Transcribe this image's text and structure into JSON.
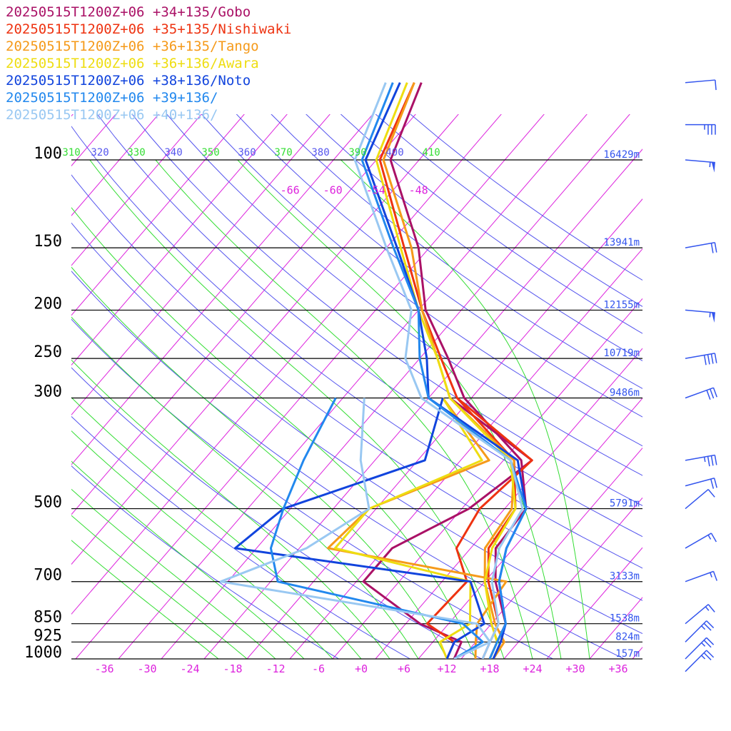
{
  "colors": {
    "isobar": "#000000",
    "isotherm": "#dd22dd",
    "dry_adiabat": "#5555ee",
    "moist_adiabat": "#33dd33",
    "height_label": "#3355ee",
    "pressure_label": "#000000",
    "barb": "#3355ee"
  },
  "chart_data": {
    "type": "line",
    "chart_kind": "Skew-T log-P sounding",
    "pressure_levels": [
      100,
      150,
      200,
      250,
      300,
      500,
      700,
      850,
      925,
      1000
    ],
    "pressure_labels": [
      "100",
      "150",
      "200",
      "250",
      "300",
      "500",
      "700",
      "850",
      "925",
      "1000"
    ],
    "height_labels": [
      {
        "p": 100,
        "text": "16429m"
      },
      {
        "p": 150,
        "text": "13941m"
      },
      {
        "p": 200,
        "text": "12155m"
      },
      {
        "p": 250,
        "text": "10719m"
      },
      {
        "p": 300,
        "text": "9486m"
      },
      {
        "p": 500,
        "text": "5791m"
      },
      {
        "p": 700,
        "text": "3133m"
      },
      {
        "p": 850,
        "text": "1538m"
      },
      {
        "p": 925,
        "text": "824m"
      },
      {
        "p": 1000,
        "text": "157m"
      }
    ],
    "temperature_ticks": [
      -36,
      -30,
      -24,
      -18,
      -12,
      -6,
      0,
      6,
      12,
      18,
      24,
      30,
      36
    ],
    "temperature_tick_labels": [
      "-36",
      "-30",
      "-24",
      "-18",
      "-12",
      "-6",
      "+0",
      "+6",
      "+12",
      "+18",
      "+24",
      "+30",
      "+36"
    ],
    "upper_isotherm_labels": [
      {
        "t": -66,
        "text": "-66"
      },
      {
        "t": -60,
        "text": "-60"
      },
      {
        "t": -54,
        "text": "-54"
      },
      {
        "t": -48,
        "text": "-48"
      }
    ],
    "theta_labels": [
      {
        "theta": 310,
        "text": "310",
        "kind": "moist"
      },
      {
        "theta": 320,
        "text": "320",
        "kind": "dry"
      },
      {
        "theta": 330,
        "text": "330",
        "kind": "moist"
      },
      {
        "theta": 340,
        "text": "340",
        "kind": "dry"
      },
      {
        "theta": 350,
        "text": "350",
        "kind": "moist"
      },
      {
        "theta": 360,
        "text": "360",
        "kind": "dry"
      },
      {
        "theta": 370,
        "text": "370",
        "kind": "moist"
      },
      {
        "theta": 380,
        "text": "380",
        "kind": "dry"
      },
      {
        "theta": 390,
        "text": "390",
        "kind": "moist"
      },
      {
        "theta": 400,
        "text": "400",
        "kind": "dry"
      },
      {
        "theta": 410,
        "text": "410",
        "kind": "moist"
      }
    ],
    "dry_adiabats_theta": [
      270,
      280,
      290,
      300,
      310,
      320,
      330,
      340,
      350,
      360,
      370,
      380,
      390,
      400,
      410,
      420,
      430,
      440
    ],
    "moist_adiabats_t": [
      -20,
      -16,
      -12,
      -8,
      -4,
      0,
      4,
      8,
      12,
      16,
      20,
      24,
      28,
      32
    ],
    "xlim": [
      -40,
      40
    ],
    "plim": [
      1000,
      100
    ],
    "series": [
      {
        "name": "20250515T1200Z+06 +34+135/Gobo",
        "color": "#aa1166",
        "temperature": [
          [
            1000,
            18
          ],
          [
            925,
            17
          ],
          [
            850,
            16
          ],
          [
            700,
            9.5
          ],
          [
            600,
            5.5
          ],
          [
            500,
            5
          ],
          [
            400,
            -1.5
          ],
          [
            300,
            -17
          ],
          [
            250,
            -24
          ],
          [
            200,
            -33
          ],
          [
            150,
            -41.5
          ],
          [
            100,
            -56
          ],
          [
            70,
            -61
          ]
        ],
        "dewpoint": [
          [
            1000,
            13
          ],
          [
            925,
            12
          ],
          [
            850,
            4
          ],
          [
            700,
            -9
          ],
          [
            600,
            -9
          ],
          [
            500,
            -3
          ],
          [
            400,
            0
          ],
          [
            300,
            -19
          ]
        ]
      },
      {
        "name": "20250515T1200Z+06 +35+135/Nishiwaki",
        "color": "#ee3311",
        "temperature": [
          [
            1000,
            17
          ],
          [
            925,
            16
          ],
          [
            850,
            15
          ],
          [
            700,
            8.5
          ],
          [
            600,
            4.5
          ],
          [
            500,
            3.5
          ],
          [
            400,
            -2.5
          ],
          [
            300,
            -18
          ],
          [
            250,
            -25
          ],
          [
            200,
            -33.5
          ],
          [
            150,
            -43.5
          ],
          [
            100,
            -57.5
          ],
          [
            70,
            -62
          ]
        ],
        "dewpoint": [
          [
            1000,
            12
          ],
          [
            925,
            11
          ],
          [
            850,
            5
          ],
          [
            700,
            5.5
          ],
          [
            600,
            0
          ],
          [
            500,
            -1.5
          ],
          [
            400,
            0
          ],
          [
            300,
            -18
          ]
        ]
      },
      {
        "name": "20250515T1200Z+06 +36+135/Tango",
        "color": "#f59a1a",
        "temperature": [
          [
            1000,
            18.5
          ],
          [
            925,
            18
          ],
          [
            850,
            14.5
          ],
          [
            700,
            8
          ],
          [
            600,
            4
          ],
          [
            500,
            3
          ],
          [
            400,
            -2.5
          ],
          [
            300,
            -19
          ],
          [
            250,
            -25.5
          ],
          [
            200,
            -33.5
          ],
          [
            150,
            -42.5
          ],
          [
            100,
            -57
          ],
          [
            70,
            -62
          ]
        ],
        "dewpoint": [
          [
            1000,
            16
          ],
          [
            925,
            14
          ],
          [
            850,
            12
          ],
          [
            700,
            11
          ],
          [
            600,
            -18
          ],
          [
            500,
            -17
          ],
          [
            400,
            -6
          ],
          [
            300,
            -20
          ]
        ]
      },
      {
        "name": "20250515T1200Z+06 +36+136/Awara",
        "color": "#eedd11",
        "temperature": [
          [
            1000,
            18
          ],
          [
            925,
            17
          ],
          [
            850,
            14
          ],
          [
            700,
            8
          ],
          [
            600,
            5
          ],
          [
            500,
            3.5
          ],
          [
            400,
            -3
          ],
          [
            300,
            -19
          ],
          [
            250,
            -25.5
          ],
          [
            200,
            -34
          ],
          [
            150,
            -44
          ],
          [
            100,
            -58
          ],
          [
            70,
            -63
          ]
        ],
        "dewpoint": [
          [
            1000,
            12
          ],
          [
            925,
            9
          ],
          [
            850,
            11
          ],
          [
            700,
            6
          ],
          [
            600,
            -17
          ],
          [
            500,
            -17
          ],
          [
            400,
            -7
          ],
          [
            300,
            -20
          ]
        ]
      },
      {
        "name": "20250515T1200Z+06 +38+136/Noto",
        "color": "#1144dd",
        "temperature": [
          [
            1000,
            18.5
          ],
          [
            925,
            17.5
          ],
          [
            850,
            16
          ],
          [
            700,
            10
          ],
          [
            600,
            7
          ],
          [
            500,
            5
          ],
          [
            400,
            -2
          ],
          [
            300,
            -22
          ],
          [
            250,
            -27
          ],
          [
            200,
            -34
          ],
          [
            150,
            -44.5
          ],
          [
            100,
            -59.5
          ],
          [
            70,
            -64
          ]
        ],
        "dewpoint": [
          [
            1000,
            12
          ],
          [
            925,
            11
          ],
          [
            850,
            13
          ],
          [
            700,
            6
          ],
          [
            600,
            -31
          ],
          [
            500,
            -29
          ],
          [
            400,
            -15
          ],
          [
            300,
            -20
          ]
        ]
      },
      {
        "name": "20250515T1200Z+06 +39+136/",
        "color": "#2288ee",
        "temperature": [
          [
            1000,
            18
          ],
          [
            925,
            17
          ],
          [
            850,
            16
          ],
          [
            700,
            10
          ],
          [
            600,
            7
          ],
          [
            500,
            5
          ],
          [
            400,
            -3
          ],
          [
            300,
            -22
          ],
          [
            250,
            -28
          ],
          [
            200,
            -34
          ],
          [
            150,
            -45
          ],
          [
            100,
            -60
          ],
          [
            70,
            -65
          ]
        ],
        "dewpoint": [
          [
            1000,
            13
          ],
          [
            925,
            15
          ],
          [
            850,
            10
          ],
          [
            700,
            -21
          ],
          [
            600,
            -26
          ],
          [
            500,
            -29
          ],
          [
            400,
            -32
          ],
          [
            300,
            -35
          ]
        ]
      },
      {
        "name": "20250515T1200Z+06 +40+136/",
        "color": "#99c8f2",
        "temperature": [
          [
            1000,
            17
          ],
          [
            925,
            16
          ],
          [
            850,
            15
          ],
          [
            700,
            9
          ],
          [
            600,
            6
          ],
          [
            500,
            4.5
          ],
          [
            400,
            -3
          ],
          [
            300,
            -23
          ],
          [
            250,
            -30
          ],
          [
            200,
            -35
          ],
          [
            150,
            -46
          ],
          [
            100,
            -61
          ],
          [
            70,
            -66
          ]
        ],
        "dewpoint": [
          [
            1000,
            13
          ],
          [
            925,
            16
          ],
          [
            850,
            12
          ],
          [
            700,
            -29
          ],
          [
            600,
            -21
          ],
          [
            500,
            -17
          ],
          [
            400,
            -24
          ],
          [
            300,
            -31
          ]
        ]
      }
    ],
    "wind_barbs": [
      {
        "p": 70,
        "dir": 265,
        "speed": 10
      },
      {
        "p": 85,
        "dir": 270,
        "speed": 35
      },
      {
        "p": 100,
        "dir": 275,
        "speed": 55
      },
      {
        "p": 150,
        "dir": 260,
        "speed": 20
      },
      {
        "p": 200,
        "dir": 275,
        "speed": 55
      },
      {
        "p": 250,
        "dir": 260,
        "speed": 40
      },
      {
        "p": 300,
        "dir": 250,
        "speed": 30
      },
      {
        "p": 400,
        "dir": 260,
        "speed": 35
      },
      {
        "p": 450,
        "dir": 255,
        "speed": 20
      },
      {
        "p": 500,
        "dir": 230,
        "speed": 10
      },
      {
        "p": 600,
        "dir": 240,
        "speed": 15
      },
      {
        "p": 700,
        "dir": 250,
        "speed": 15
      },
      {
        "p": 850,
        "dir": 230,
        "speed": 15
      },
      {
        "p": 925,
        "dir": 225,
        "speed": 25
      },
      {
        "p": 1000,
        "dir": 225,
        "speed": 25
      },
      {
        "p": 1060,
        "dir": 225,
        "speed": 25
      }
    ],
    "legend_placement": "top-left",
    "title": "",
    "xlabel": "",
    "ylabel": ""
  }
}
